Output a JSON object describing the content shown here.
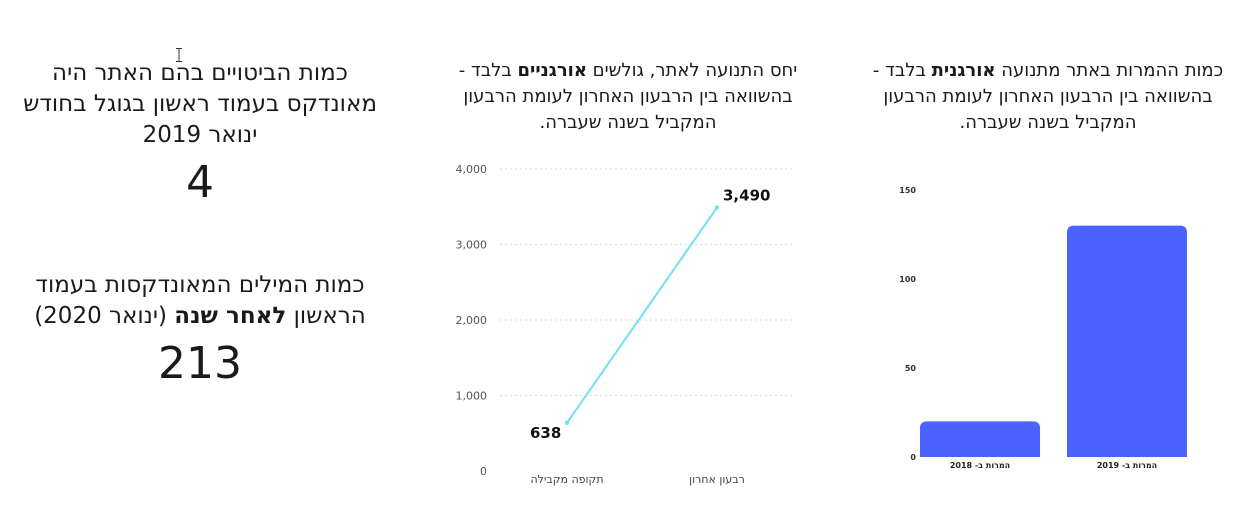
{
  "stats": [
    {
      "label_before": "כמות הביטויים בהם האתר היה מאונדקס בעמוד ראשון בגוגל בחודש ינואר 2019",
      "label_bold": "",
      "label_after": "",
      "value": "4"
    },
    {
      "label_before": "כמות המילים המאונדקסות בעמוד הראשון ",
      "label_bold": "לאחר שנה",
      "label_after": " (ינואר 2020)",
      "value": "213"
    }
  ],
  "chart_data": [
    {
      "type": "line",
      "title_before": "יחס התנועה לאתר, גולשים ",
      "title_bold": "אורגניים",
      "title_after": " בלבד - בהשוואה בין הרבעון האחרון לעומת הרבעון המקביל בשנה שעברה.",
      "categories": [
        "תקופה מקבילה",
        "רבעון אחרון"
      ],
      "values": [
        638,
        3490
      ],
      "value_labels": [
        "638",
        "3,490"
      ],
      "ylim": [
        0,
        4000
      ],
      "yticks": [
        0,
        1000,
        2000,
        3000,
        4000
      ],
      "ytick_labels": [
        "0",
        "1,000",
        "2,000",
        "3,000",
        "4,000"
      ],
      "line_color": "#6fe3ee",
      "grid": true
    },
    {
      "type": "bar",
      "title_before": "כמות ההמרות באתר מתנועה ",
      "title_bold": "אורגנית",
      "title_after": " בלבד - בהשוואה בין הרבעון האחרון לעומת הרבעון המקביל בשנה שעברה.",
      "categories": [
        "המרות ב- 2018",
        "המרות ב- 2019"
      ],
      "values": [
        20,
        130
      ],
      "ylim": [
        0,
        150
      ],
      "yticks": [
        0,
        50,
        100,
        150
      ],
      "ytick_labels": [
        "0",
        "50",
        "100",
        "150"
      ],
      "bar_color": "#4a63ff"
    }
  ]
}
